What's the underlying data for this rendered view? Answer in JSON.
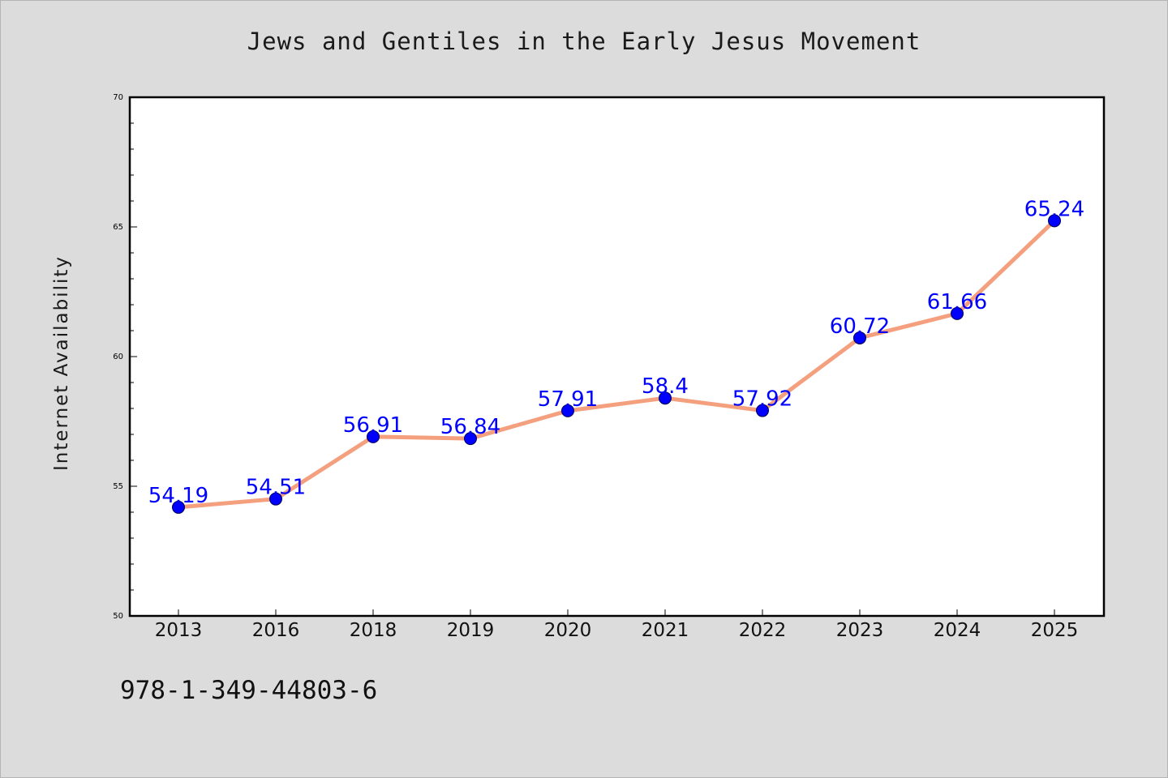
{
  "page": {
    "title": "Jews and Gentiles in the Early Jesus Movement",
    "footer_code": "978-1-349-44803-6"
  },
  "chart_data": {
    "type": "line",
    "title": "Jews and Gentiles in the Early Jesus Movement",
    "xlabel": "",
    "ylabel": "Internet Availability",
    "categories": [
      "2013",
      "2016",
      "2018",
      "2019",
      "2020",
      "2021",
      "2022",
      "2023",
      "2024",
      "2025"
    ],
    "values": [
      54.19,
      54.51,
      56.91,
      56.84,
      57.91,
      58.4,
      57.92,
      60.72,
      61.66,
      65.24
    ],
    "data_labels": [
      "54.19",
      "54.51",
      "56.91",
      "56.84",
      "57.91",
      "58.4",
      "57.92",
      "60.72",
      "61.66",
      "65.24"
    ],
    "ylim": [
      50,
      70
    ],
    "y_ticks": [
      50,
      55,
      60,
      65,
      70
    ],
    "y_tick_labels": [
      "50",
      "55",
      "60",
      "65",
      "70"
    ],
    "grid": false,
    "colors": {
      "line": "#f4a07e",
      "marker": "#0000ff",
      "data_label": "#0000ff",
      "plot_background": "#ffffff",
      "page_background": "#dcdcdc"
    }
  }
}
